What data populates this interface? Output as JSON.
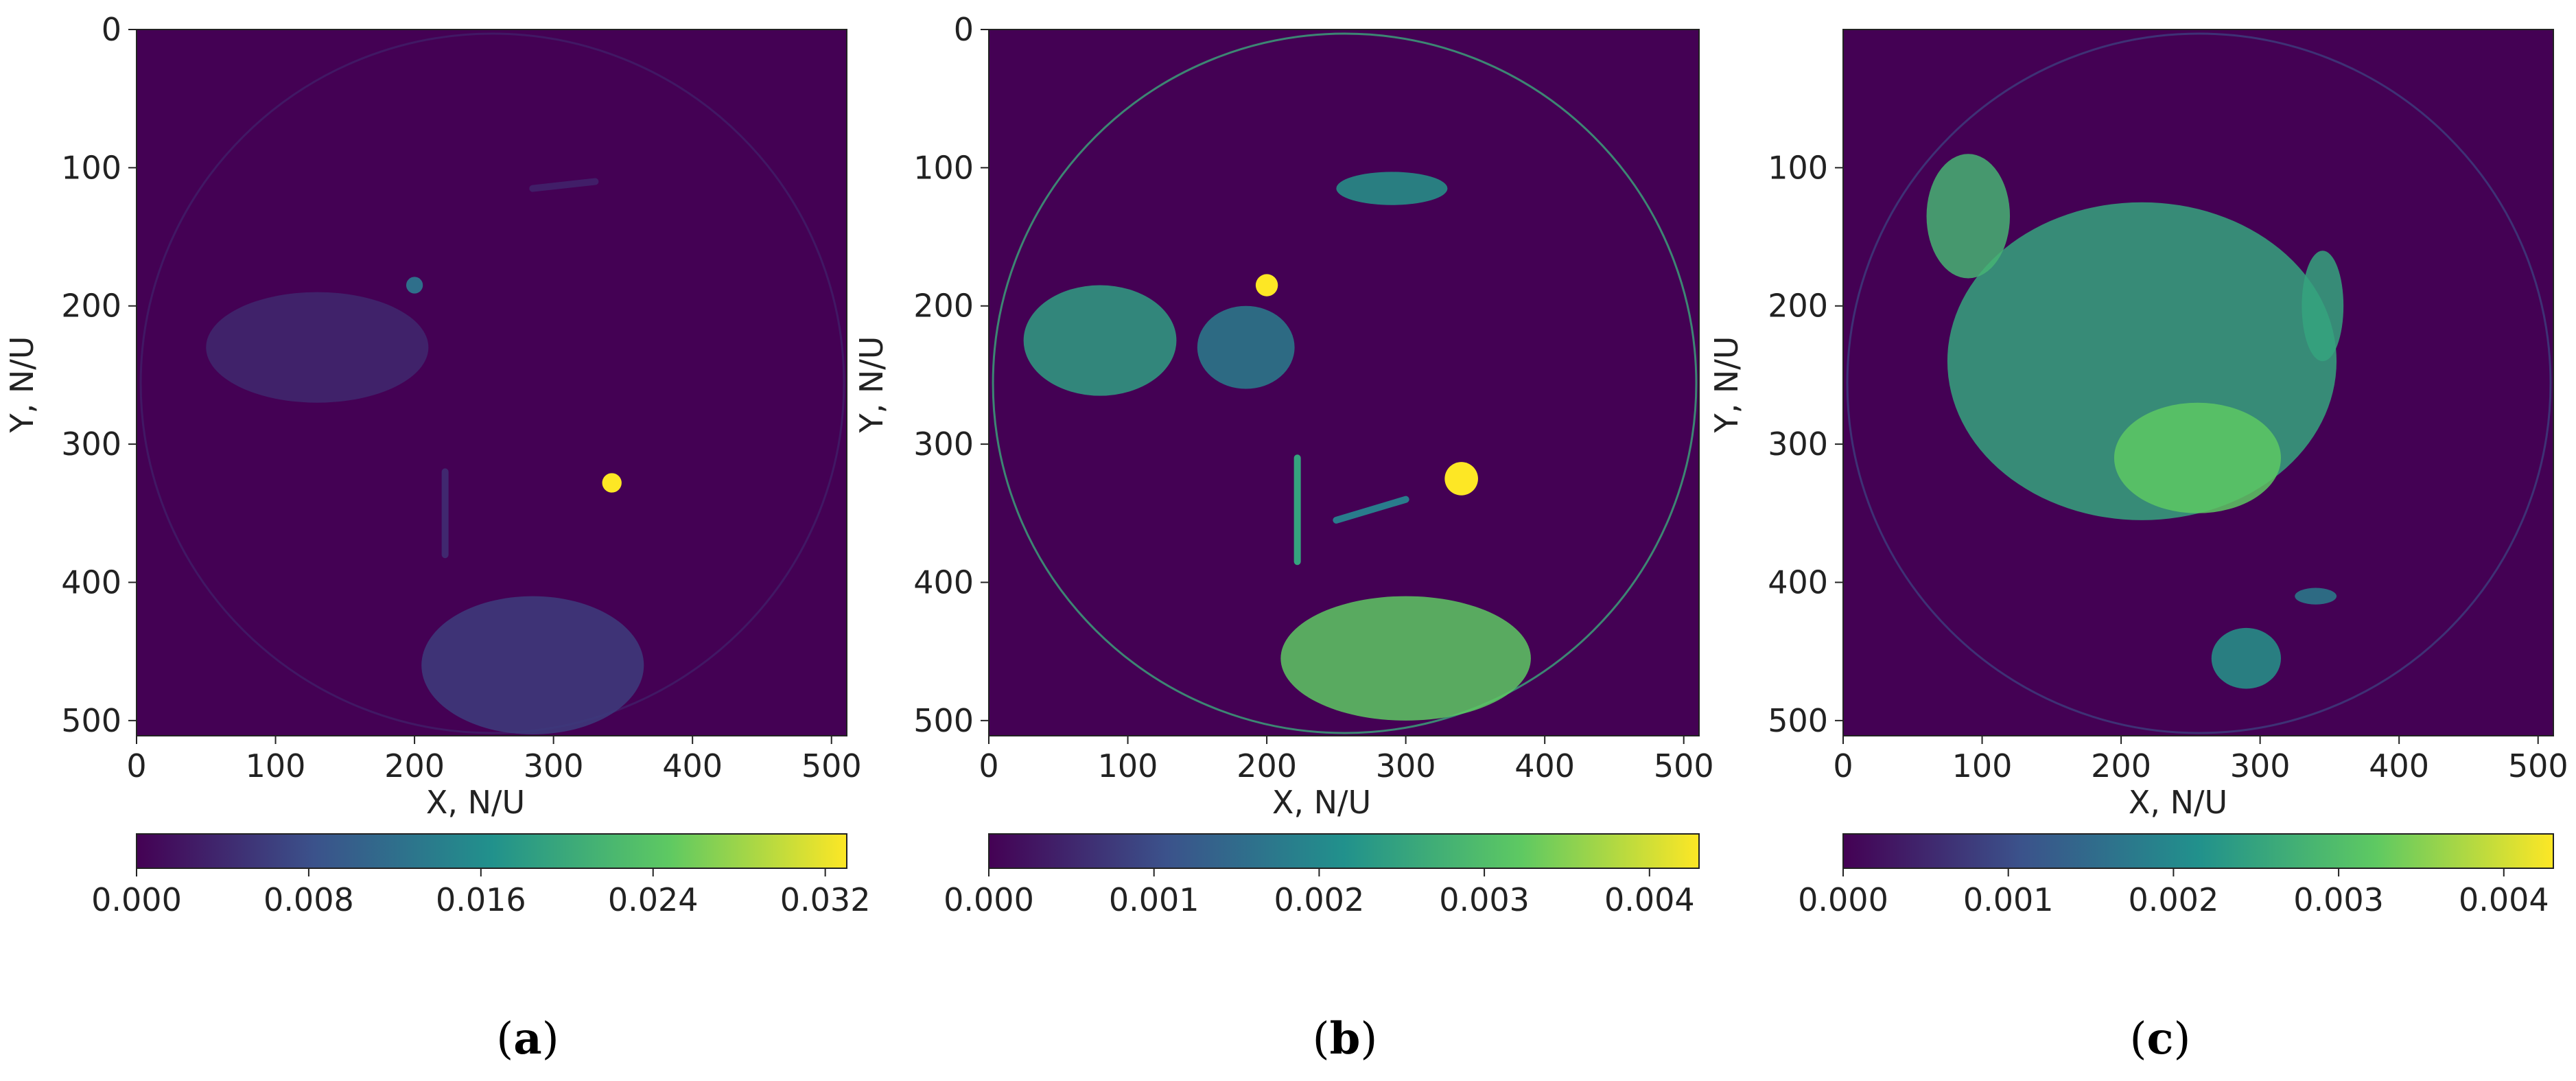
{
  "chart_data": [
    {
      "type": "heatmap",
      "caption": "a",
      "xlabel": "X, N/U",
      "ylabel": "Y, N/U",
      "xlim": [
        0,
        511
      ],
      "ylim": [
        511,
        0
      ],
      "xticks": [
        0,
        100,
        200,
        300,
        400,
        500
      ],
      "yticks": [
        0,
        100,
        200,
        300,
        400,
        500
      ],
      "colormap": "viridis",
      "colorbar": {
        "min": 0.0,
        "max": 0.033,
        "ticks": [
          "0.000",
          "0.008",
          "0.016",
          "0.024",
          "0.032"
        ],
        "tick_values": [
          0.0,
          0.008,
          0.016,
          0.024,
          0.032
        ]
      },
      "field_of_view": {
        "center": [
          256,
          256
        ],
        "radius": 253,
        "rim_value": 0.003
      },
      "features": [
        {
          "kind": "spot",
          "x": 342,
          "y": 328,
          "r": 7,
          "value": 0.033
        },
        {
          "kind": "spot",
          "x": 200,
          "y": 185,
          "r": 6,
          "value": 0.012
        },
        {
          "kind": "region",
          "x": 130,
          "y": 230,
          "rx": 80,
          "ry": 40,
          "value": 0.004
        },
        {
          "kind": "region",
          "x": 285,
          "y": 460,
          "rx": 80,
          "ry": 50,
          "value": 0.006
        },
        {
          "kind": "streak",
          "x1": 222,
          "y1": 320,
          "x2": 222,
          "y2": 380,
          "value": 0.004
        },
        {
          "kind": "streak",
          "x1": 285,
          "y1": 115,
          "x2": 330,
          "y2": 110,
          "value": 0.003
        }
      ]
    },
    {
      "type": "heatmap",
      "caption": "b",
      "xlabel": "X, N/U",
      "ylabel": "Y, N/U",
      "xlim": [
        0,
        511
      ],
      "ylim": [
        511,
        0
      ],
      "xticks": [
        0,
        100,
        200,
        300,
        400,
        500
      ],
      "yticks": [
        0,
        100,
        200,
        300,
        400,
        500
      ],
      "colormap": "viridis",
      "colorbar": {
        "min": 0.0,
        "max": 0.0043,
        "ticks": [
          "0.000",
          "0.001",
          "0.002",
          "0.003",
          "0.004"
        ],
        "tick_values": [
          0.0,
          0.001,
          0.002,
          0.003,
          0.004
        ]
      },
      "field_of_view": {
        "center": [
          256,
          256
        ],
        "radius": 253,
        "rim_value": 0.0026
      },
      "features": [
        {
          "kind": "spot",
          "x": 340,
          "y": 325,
          "r": 12,
          "value": 0.0043
        },
        {
          "kind": "spot",
          "x": 200,
          "y": 185,
          "r": 8,
          "value": 0.0043
        },
        {
          "kind": "region",
          "x": 80,
          "y": 225,
          "rx": 55,
          "ry": 40,
          "value": 0.0024
        },
        {
          "kind": "region",
          "x": 185,
          "y": 230,
          "rx": 35,
          "ry": 30,
          "value": 0.0018
        },
        {
          "kind": "region",
          "x": 300,
          "y": 455,
          "rx": 90,
          "ry": 45,
          "value": 0.0032
        },
        {
          "kind": "region",
          "x": 290,
          "y": 115,
          "rx": 40,
          "ry": 12,
          "value": 0.0022
        },
        {
          "kind": "streak",
          "x1": 222,
          "y1": 310,
          "x2": 222,
          "y2": 385,
          "value": 0.0025
        },
        {
          "kind": "streak",
          "x1": 250,
          "y1": 355,
          "x2": 300,
          "y2": 340,
          "value": 0.0018
        }
      ]
    },
    {
      "type": "heatmap",
      "caption": "c",
      "xlabel": "X, N/U",
      "ylabel": "Y, N/U",
      "xlim": [
        0,
        511
      ],
      "ylim": [
        511,
        0
      ],
      "xticks": [
        0,
        100,
        200,
        300,
        400,
        500
      ],
      "yticks": [
        100,
        200,
        300,
        400,
        500
      ],
      "colormap": "viridis",
      "colorbar": {
        "min": 0.0,
        "max": 0.0043,
        "ticks": [
          "0.000",
          "0.001",
          "0.002",
          "0.003",
          "0.004"
        ],
        "tick_values": [
          0.0,
          0.001,
          0.002,
          0.003,
          0.004
        ]
      },
      "field_of_view": {
        "center": [
          256,
          256
        ],
        "radius": 253,
        "rim_value": 0.0008
      },
      "features": [
        {
          "kind": "region",
          "x": 215,
          "y": 240,
          "rx": 140,
          "ry": 115,
          "value": 0.0025
        },
        {
          "kind": "region",
          "x": 90,
          "y": 135,
          "rx": 30,
          "ry": 45,
          "value": 0.0028
        },
        {
          "kind": "region",
          "x": 255,
          "y": 310,
          "rx": 60,
          "ry": 40,
          "value": 0.0032
        },
        {
          "kind": "region",
          "x": 290,
          "y": 455,
          "rx": 25,
          "ry": 22,
          "value": 0.0022
        },
        {
          "kind": "region",
          "x": 340,
          "y": 410,
          "rx": 15,
          "ry": 6,
          "value": 0.0018
        },
        {
          "kind": "region",
          "x": 345,
          "y": 200,
          "rx": 15,
          "ry": 40,
          "value": 0.0025
        }
      ]
    }
  ],
  "colors": {
    "background_low": "#440154",
    "viridis_stops": [
      "#440154",
      "#3b528b",
      "#21918c",
      "#5ec962",
      "#fde725"
    ],
    "text": "#222222"
  }
}
